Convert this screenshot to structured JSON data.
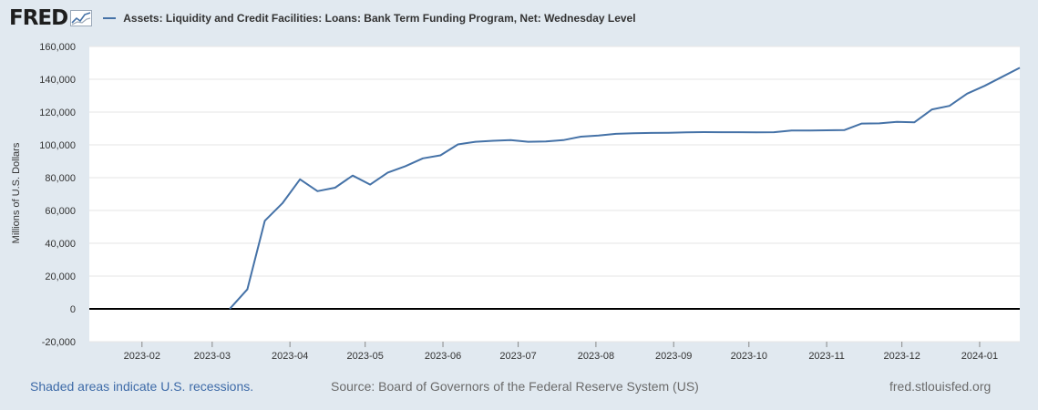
{
  "header": {
    "logo_text": "FRED",
    "logo_icon": "fred-line-chart-icon"
  },
  "footer": {
    "recessions_note": "Shaded areas indicate U.S. recessions.",
    "source": "Source: Board of Governors of the Federal Reserve System (US)",
    "site": "fred.stlouisfed.org"
  },
  "chart_data": {
    "type": "line",
    "title": "Assets: Liquidity and Credit Facilities: Loans: Bank Term Funding Program, Net: Wednesday Level",
    "xlabel": "",
    "ylabel": "Millions of U.S. Dollars",
    "ylim": [
      -20000,
      160000
    ],
    "yticks": [
      -20000,
      0,
      20000,
      40000,
      60000,
      80000,
      100000,
      120000,
      140000,
      160000
    ],
    "ytick_labels": [
      "-20,000",
      "0",
      "20,000",
      "40,000",
      "60,000",
      "80,000",
      "100,000",
      "120,000",
      "140,000",
      "160,000"
    ],
    "xlim": [
      "2023-01-11",
      "2024-01-17"
    ],
    "xticks": [
      "2023-02-01",
      "2023-03-01",
      "2023-04-01",
      "2023-05-01",
      "2023-06-01",
      "2023-07-01",
      "2023-08-01",
      "2023-09-01",
      "2023-10-01",
      "2023-11-01",
      "2023-12-01",
      "2024-01-01"
    ],
    "xtick_labels": [
      "2023-02",
      "2023-03",
      "2023-04",
      "2023-05",
      "2023-06",
      "2023-07",
      "2023-08",
      "2023-09",
      "2023-10",
      "2023-11",
      "2023-12",
      "2024-01"
    ],
    "grid": true,
    "legend": "top-left",
    "colors": {
      "series": "#4572a7",
      "background": "#e1e9f0",
      "plot": "#ffffff",
      "grid": "#e6e6e6",
      "zero_line": "#000000"
    },
    "series": [
      {
        "name": "Assets: Liquidity and Credit Facilities: Loans: Bank Term Funding Program, Net: Wednesday Level",
        "x": [
          "2023-03-08",
          "2023-03-15",
          "2023-03-22",
          "2023-03-29",
          "2023-04-05",
          "2023-04-12",
          "2023-04-19",
          "2023-04-26",
          "2023-05-03",
          "2023-05-10",
          "2023-05-17",
          "2023-05-24",
          "2023-05-31",
          "2023-06-07",
          "2023-06-14",
          "2023-06-21",
          "2023-06-28",
          "2023-07-05",
          "2023-07-12",
          "2023-07-19",
          "2023-07-26",
          "2023-08-02",
          "2023-08-09",
          "2023-08-16",
          "2023-08-23",
          "2023-08-30",
          "2023-09-06",
          "2023-09-13",
          "2023-09-20",
          "2023-09-27",
          "2023-10-04",
          "2023-10-11",
          "2023-10-18",
          "2023-10-25",
          "2023-11-01",
          "2023-11-08",
          "2023-11-15",
          "2023-11-22",
          "2023-11-29",
          "2023-12-06",
          "2023-12-13",
          "2023-12-20",
          "2023-12-27",
          "2024-01-03",
          "2024-01-10",
          "2024-01-17"
        ],
        "values": [
          0,
          11900,
          53700,
          64400,
          79000,
          71800,
          73900,
          81300,
          75800,
          83100,
          87000,
          91800,
          93600,
          100300,
          101900,
          102500,
          102900,
          101900,
          102100,
          102900,
          105000,
          105700,
          106700,
          107100,
          107300,
          107400,
          107600,
          107800,
          107700,
          107700,
          107600,
          107700,
          108800,
          108700,
          108900,
          109000,
          113000,
          113100,
          114000,
          113800,
          121600,
          123800,
          131200,
          136000,
          141500,
          147000
        ]
      }
    ]
  }
}
